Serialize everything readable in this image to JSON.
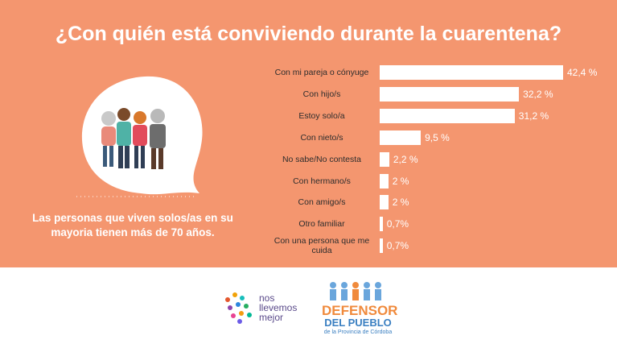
{
  "chart_data": {
    "type": "bar",
    "orientation": "horizontal",
    "title": "¿Con quién está conviviendo durante la cuarentena?",
    "categories": [
      "Con mi pareja o cónyuge",
      "Con hijo/s",
      "Estoy solo/a",
      "Con nieto/s",
      "No sabe/No contesta",
      "Con hermano/s",
      "Con amigo/s",
      "Otro familiar",
      "Con una persona que me cuida"
    ],
    "values": [
      42.4,
      32.2,
      31.2,
      9.5,
      2.2,
      2,
      2,
      0.7,
      0.7
    ],
    "value_labels": [
      "42,4 %",
      "32,2 %",
      "31,2 %",
      "9,5 %",
      "2,2 %",
      "2 %",
      "2 %",
      "0,7%",
      "0,7%"
    ],
    "color": "#ffffff",
    "background": "#f4966f"
  },
  "caption_lines": [
    "Las personas que viven solos/as en su",
    "mayoria tienen más de 70 años."
  ],
  "logos": {
    "left": [
      "nos",
      "llevemos",
      "mejor"
    ],
    "right": [
      "DEFENSOR",
      "DEL PUEBLO",
      "de la Provincia de Córdoba"
    ]
  }
}
